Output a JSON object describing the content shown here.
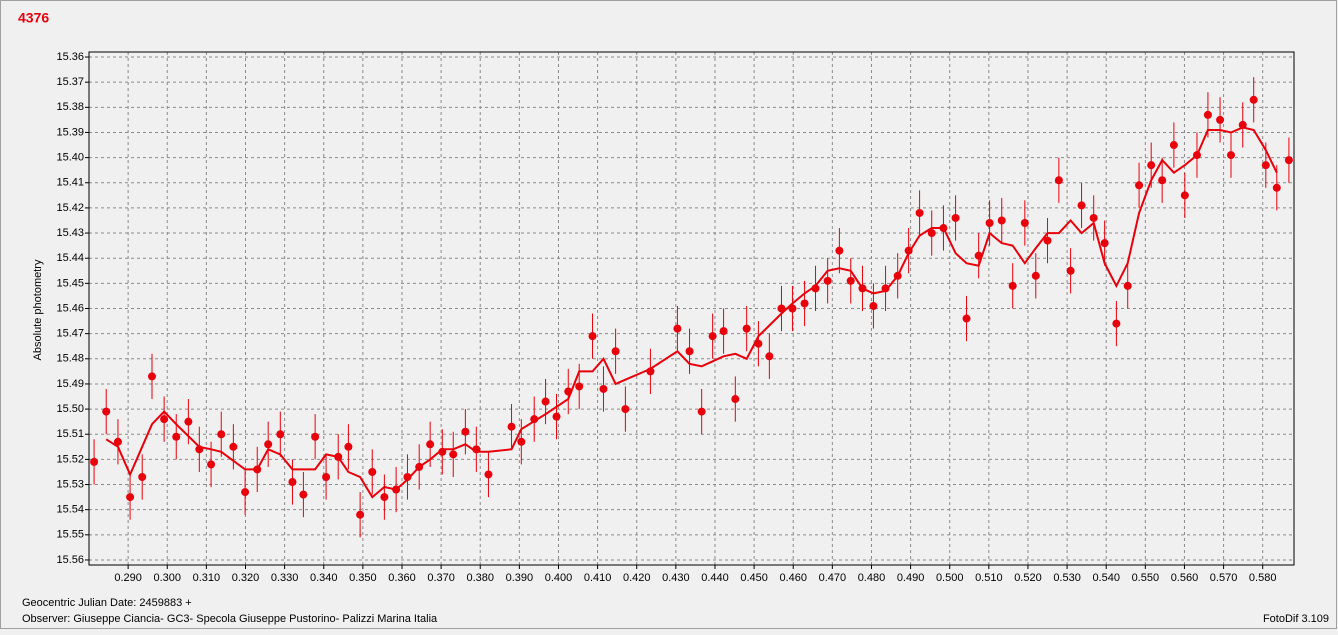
{
  "chart_data": {
    "type": "scatter",
    "title": "4376",
    "y_label": "Absolute photometry",
    "x_label": "Geocentric Julian Date: 2459883 +",
    "notes": [
      "Observer: Giuseppe Ciancia- GC3- Specola Giuseppe Pustorino- Palizzi Marina Italia",
      "FotoDif 3.109"
    ],
    "xlim": [
      0.28,
      0.588
    ],
    "ylim": [
      15.562,
      15.358
    ],
    "grid": true,
    "xticks": [
      {
        "value": 0.29,
        "label": "0.290"
      },
      {
        "value": 0.3,
        "label": "0.300"
      },
      {
        "value": 0.31,
        "label": "0.310"
      },
      {
        "value": 0.32,
        "label": "0.320"
      },
      {
        "value": 0.33,
        "label": "0.330"
      },
      {
        "value": 0.34,
        "label": "0.340"
      },
      {
        "value": 0.35,
        "label": "0.350"
      },
      {
        "value": 0.36,
        "label": "0.360"
      },
      {
        "value": 0.37,
        "label": "0.370"
      },
      {
        "value": 0.38,
        "label": "0.380"
      },
      {
        "value": 0.39,
        "label": "0.390"
      },
      {
        "value": 0.4,
        "label": "0.400"
      },
      {
        "value": 0.41,
        "label": "0.410"
      },
      {
        "value": 0.42,
        "label": "0.420"
      },
      {
        "value": 0.43,
        "label": "0.430"
      },
      {
        "value": 0.44,
        "label": "0.440"
      },
      {
        "value": 0.45,
        "label": "0.450"
      },
      {
        "value": 0.46,
        "label": "0.460"
      },
      {
        "value": 0.47,
        "label": "0.470"
      },
      {
        "value": 0.48,
        "label": "0.480"
      },
      {
        "value": 0.49,
        "label": "0.490"
      },
      {
        "value": 0.5,
        "label": "0.500"
      },
      {
        "value": 0.51,
        "label": "0.510"
      },
      {
        "value": 0.52,
        "label": "0.520"
      },
      {
        "value": 0.53,
        "label": "0.530"
      },
      {
        "value": 0.54,
        "label": "0.540"
      },
      {
        "value": 0.55,
        "label": "0.550"
      },
      {
        "value": 0.56,
        "label": "0.560"
      },
      {
        "value": 0.57,
        "label": "0.570"
      },
      {
        "value": 0.58,
        "label": "0.580"
      }
    ],
    "yticks": [
      15.36,
      15.37,
      15.38,
      15.39,
      {
        "value": 15.4,
        "label": "15.40"
      },
      15.41,
      15.42,
      15.43,
      15.44,
      15.45,
      15.46,
      15.47,
      15.48,
      15.49,
      {
        "value": 15.5,
        "label": "15.50"
      },
      15.51,
      15.52,
      15.53,
      15.54,
      15.55,
      15.56
    ],
    "series": [
      {
        "style": "points",
        "color": "#e8000b",
        "error": 0.009,
        "x": [
          0.2813,
          0.2844,
          0.2874,
          0.2905,
          0.2936,
          0.2961,
          0.2992,
          0.3023,
          0.3054,
          0.3082,
          0.3112,
          0.3138,
          0.3169,
          0.3199,
          0.323,
          0.3258,
          0.3289,
          0.332,
          0.3348,
          0.3378,
          0.3406,
          0.3437,
          0.3463,
          0.3493,
          0.3524,
          0.3555,
          0.3585,
          0.3614,
          0.3644,
          0.3672,
          0.3703,
          0.3731,
          0.3762,
          0.379,
          0.3821,
          0.388,
          0.3905,
          0.3938,
          0.3967,
          0.3995,
          0.4025,
          0.4053,
          0.4087,
          0.4115,
          0.4146,
          0.4171,
          0.4235,
          0.4304,
          0.4335,
          0.4366,
          0.4394,
          0.4422,
          0.4452,
          0.4481,
          0.4511,
          0.4539,
          0.457,
          0.4598,
          0.4629,
          0.4657,
          0.4688,
          0.4718,
          0.4747,
          0.4777,
          0.4805,
          0.4836,
          0.4867,
          0.4895,
          0.4923,
          0.4954,
          0.4984,
          0.5015,
          0.5043,
          0.5074,
          0.5102,
          0.5133,
          0.5161,
          0.5192,
          0.522,
          0.525,
          0.5279,
          0.5309,
          0.5337,
          0.5368,
          0.5396,
          0.5426,
          0.5455,
          0.5484,
          0.5515,
          0.5543,
          0.5573,
          0.5601,
          0.5632,
          0.566,
          0.5691,
          0.5719,
          0.5749,
          0.5777,
          0.5808,
          0.5836,
          0.5867
        ],
        "values": [
          15.521,
          15.501,
          15.513,
          15.535,
          15.527,
          15.487,
          15.504,
          15.511,
          15.505,
          15.516,
          15.522,
          15.51,
          15.515,
          15.533,
          15.524,
          15.514,
          15.51,
          15.529,
          15.534,
          15.511,
          15.527,
          15.519,
          15.515,
          15.542,
          15.525,
          15.535,
          15.532,
          15.527,
          15.523,
          15.514,
          15.517,
          15.518,
          15.509,
          15.516,
          15.526,
          15.507,
          15.513,
          15.504,
          15.497,
          15.503,
          15.493,
          15.491,
          15.471,
          15.492,
          15.477,
          15.5,
          15.485,
          15.468,
          15.477,
          15.501,
          15.471,
          15.469,
          15.496,
          15.468,
          15.474,
          15.479,
          15.46,
          15.46,
          15.458,
          15.452,
          15.449,
          15.437,
          15.449,
          15.452,
          15.459,
          15.452,
          15.447,
          15.437,
          15.422,
          15.43,
          15.428,
          15.424,
          15.464,
          15.439,
          15.426,
          15.425,
          15.451,
          15.426,
          15.447,
          15.433,
          15.409,
          15.445,
          15.419,
          15.424,
          15.434,
          15.466,
          15.451,
          15.411,
          15.403,
          15.409,
          15.395,
          15.415,
          15.399,
          15.383,
          15.385,
          15.399,
          15.387,
          15.377,
          15.403,
          15.412,
          15.401
        ]
      },
      {
        "style": "line",
        "color": "#e8000b",
        "x": [
          0.2844,
          0.2874,
          0.2905,
          0.2961,
          0.2992,
          0.3023,
          0.3082,
          0.3112,
          0.3138,
          0.3199,
          0.323,
          0.3258,
          0.3289,
          0.332,
          0.3378,
          0.3406,
          0.3437,
          0.3463,
          0.3493,
          0.3524,
          0.3555,
          0.3585,
          0.3614,
          0.3644,
          0.3672,
          0.3703,
          0.3731,
          0.3762,
          0.379,
          0.3821,
          0.388,
          0.3905,
          0.3967,
          0.4025,
          0.4053,
          0.4087,
          0.4115,
          0.4146,
          0.4235,
          0.4304,
          0.4335,
          0.4366,
          0.4422,
          0.4452,
          0.4481,
          0.4511,
          0.457,
          0.4598,
          0.4629,
          0.4657,
          0.4688,
          0.4718,
          0.4747,
          0.4777,
          0.4805,
          0.4836,
          0.4867,
          0.4895,
          0.4923,
          0.4954,
          0.4984,
          0.5015,
          0.5043,
          0.5074,
          0.5102,
          0.5133,
          0.5161,
          0.5192,
          0.522,
          0.525,
          0.5279,
          0.5309,
          0.5337,
          0.5368,
          0.5396,
          0.5426,
          0.5455,
          0.5484,
          0.5515,
          0.5543,
          0.5573,
          0.5601,
          0.5632,
          0.566,
          0.5691,
          0.5719,
          0.5749,
          0.5777,
          0.5808,
          0.5836
        ],
        "values": [
          15.512,
          15.515,
          15.526,
          15.506,
          15.501,
          15.506,
          15.515,
          15.516,
          15.517,
          15.524,
          15.524,
          15.516,
          15.518,
          15.524,
          15.524,
          15.518,
          15.519,
          15.525,
          15.527,
          15.535,
          15.531,
          15.532,
          15.528,
          15.523,
          15.52,
          15.516,
          15.516,
          15.514,
          15.517,
          15.517,
          15.516,
          15.508,
          15.502,
          15.496,
          15.485,
          15.485,
          15.48,
          15.49,
          15.484,
          15.477,
          15.482,
          15.483,
          15.479,
          15.478,
          15.48,
          15.471,
          15.462,
          15.458,
          15.454,
          15.451,
          15.445,
          15.444,
          15.445,
          15.452,
          15.454,
          15.453,
          15.447,
          15.438,
          15.431,
          15.428,
          15.428,
          15.438,
          15.442,
          15.443,
          15.43,
          15.434,
          15.435,
          15.442,
          15.436,
          15.43,
          15.43,
          15.425,
          15.43,
          15.426,
          15.442,
          15.451,
          15.442,
          15.422,
          15.409,
          15.401,
          15.406,
          15.403,
          15.399,
          15.389,
          15.389,
          15.39,
          15.388,
          15.389,
          15.397,
          15.406
        ]
      }
    ]
  }
}
